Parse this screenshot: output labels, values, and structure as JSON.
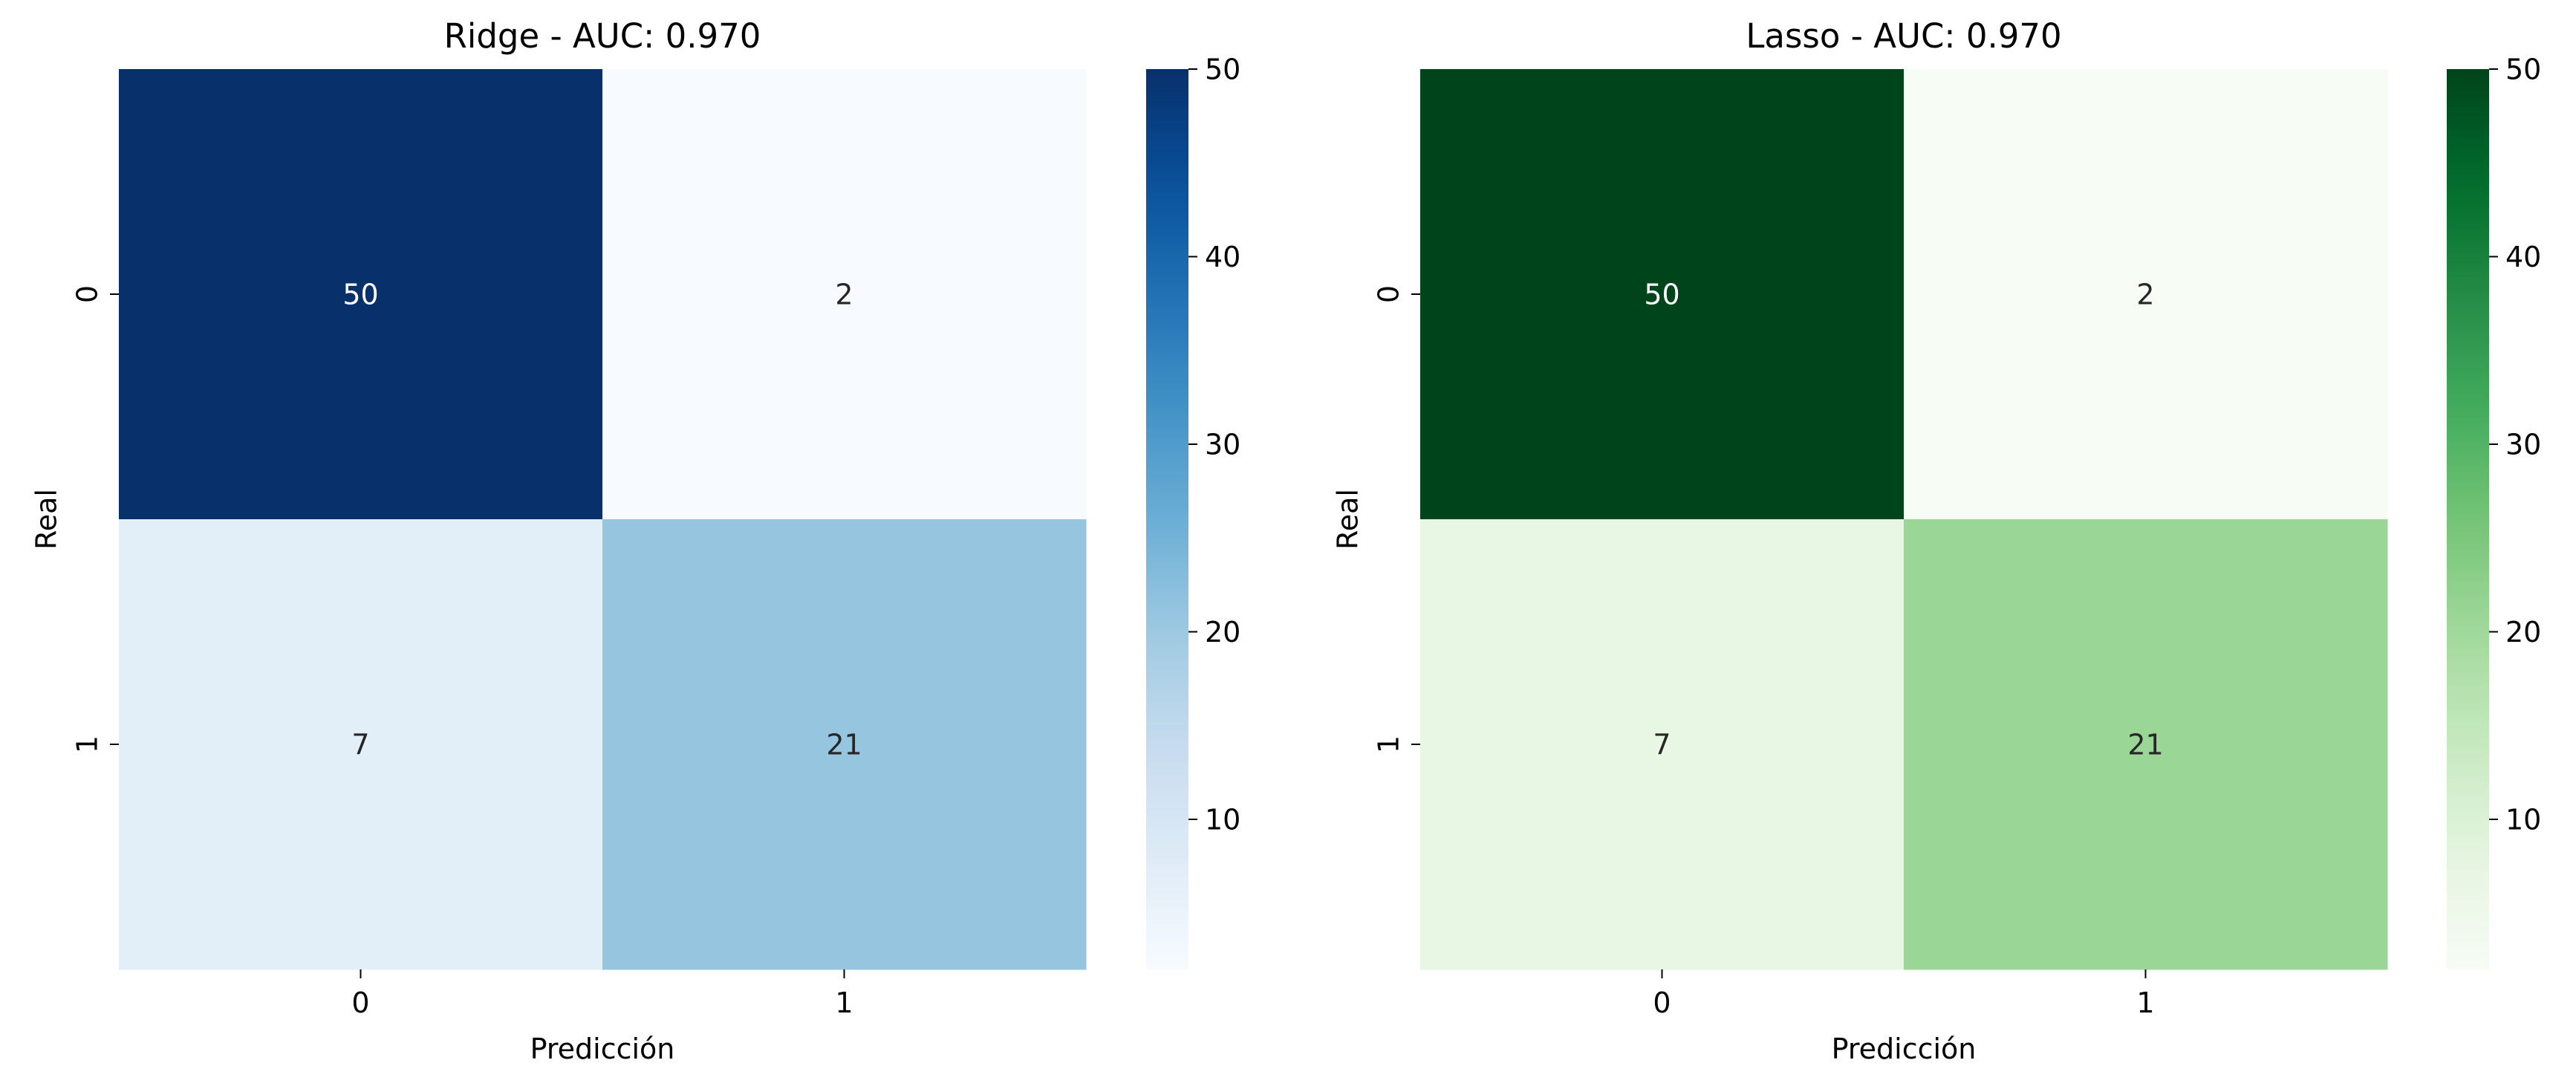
{
  "chart_data": [
    {
      "type": "heatmap",
      "title": "Ridge - AUC: 0.970",
      "xlabel": "Predicción",
      "ylabel": "Real",
      "x_categories": [
        "0",
        "1"
      ],
      "y_categories": [
        "0",
        "1"
      ],
      "values": [
        [
          50,
          2
        ],
        [
          7,
          21
        ]
      ],
      "colormap": "Blues",
      "colorbar": {
        "range": [
          2,
          50
        ],
        "ticks": [
          10,
          20,
          30,
          40,
          50
        ]
      },
      "colors": {
        "low": "#f7fbff",
        "high": "#08306b"
      }
    },
    {
      "type": "heatmap",
      "title": "Lasso - AUC: 0.970",
      "xlabel": "Predicción",
      "ylabel": "Real",
      "x_categories": [
        "0",
        "1"
      ],
      "y_categories": [
        "0",
        "1"
      ],
      "values": [
        [
          50,
          2
        ],
        [
          7,
          21
        ]
      ],
      "colormap": "Greens",
      "colorbar": {
        "range": [
          2,
          50
        ],
        "ticks": [
          10,
          20,
          30,
          40,
          50
        ]
      },
      "colors": {
        "low": "#f7fcf5",
        "high": "#00441b"
      }
    }
  ]
}
